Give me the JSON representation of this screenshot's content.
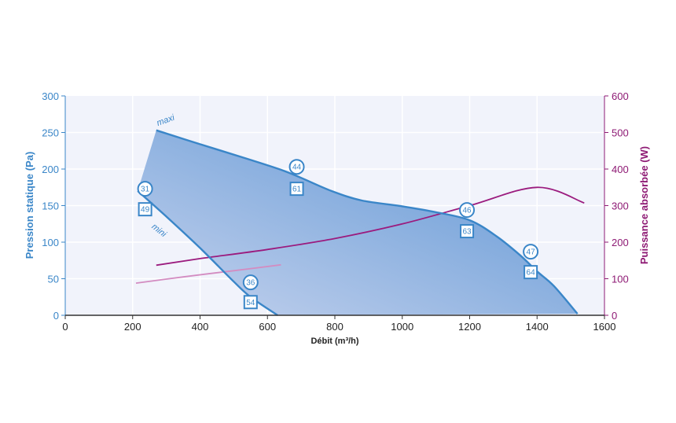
{
  "colors": {
    "left_axis": "#3a86c8",
    "right_axis": "#8e1a74",
    "plot_bg": "#f1f3fb",
    "fill_light": "#c6d3ee",
    "fill_dark": "#5a93d3",
    "curve": "#3a86c8",
    "power_max": "#9b1b7e",
    "power_min": "#d38cc1",
    "marker": "#3a86c8"
  },
  "chart_data": {
    "type": "line",
    "xlabel": "Débit (m³/h)",
    "ylabel": "Pression statique (Pa)",
    "y2label": "Puissance absorbée (W)",
    "xlim": [
      0,
      1600
    ],
    "ylim": [
      0,
      300
    ],
    "y2lim": [
      0,
      600
    ],
    "xticks": [
      0,
      200,
      400,
      600,
      800,
      1000,
      1200,
      1400,
      1600
    ],
    "yticks": [
      0,
      50,
      100,
      150,
      200,
      250,
      300
    ],
    "y2ticks": [
      0,
      100,
      200,
      300,
      400,
      500,
      600
    ],
    "grid": true,
    "series": [
      {
        "name": "maxi",
        "axis": "left",
        "x": [
          270,
          400,
          540,
          640,
          700,
          790,
          880,
          1000,
          1100,
          1200,
          1280,
          1350,
          1400,
          1450,
          1520
        ],
        "y": [
          253,
          234,
          214,
          199,
          188,
          170,
          157,
          149,
          141,
          130,
          108,
          82,
          60,
          40,
          2
        ]
      },
      {
        "name": "mini",
        "axis": "left",
        "x": [
          215,
          300,
          400,
          500,
          550,
          630
        ],
        "y": [
          170,
          135,
          92,
          46,
          25,
          0
        ]
      },
      {
        "name": "",
        "axis": "right",
        "x": [
          270,
          400,
          600,
          800,
          1000,
          1200,
          1400,
          1540
        ],
        "y": [
          137,
          155,
          180,
          210,
          250,
          300,
          350,
          307
        ]
      },
      {
        "name": "",
        "axis": "right",
        "x": [
          210,
          350,
          500,
          640
        ],
        "y": [
          88,
          105,
          122,
          138
        ]
      }
    ],
    "markers": [
      {
        "shape": "circle",
        "label": "31",
        "x": 237,
        "y": 173
      },
      {
        "shape": "square",
        "label": "49",
        "x": 237,
        "y": 145
      },
      {
        "shape": "circle",
        "label": "44",
        "x": 687,
        "y": 203
      },
      {
        "shape": "square",
        "label": "61",
        "x": 687,
        "y": 173
      },
      {
        "shape": "circle",
        "label": "46",
        "x": 1192,
        "y": 144
      },
      {
        "shape": "square",
        "label": "63",
        "x": 1192,
        "y": 115
      },
      {
        "shape": "circle",
        "label": "47",
        "x": 1381,
        "y": 87
      },
      {
        "shape": "square",
        "label": "64",
        "x": 1381,
        "y": 59
      },
      {
        "shape": "circle",
        "label": "36",
        "x": 550,
        "y": 45
      },
      {
        "shape": "square",
        "label": "54",
        "x": 550,
        "y": 18
      }
    ],
    "curve_labels": [
      {
        "text": "maxi",
        "x": 275,
        "y": 259
      },
      {
        "text": "mini",
        "x": 255,
        "y": 120
      }
    ]
  }
}
